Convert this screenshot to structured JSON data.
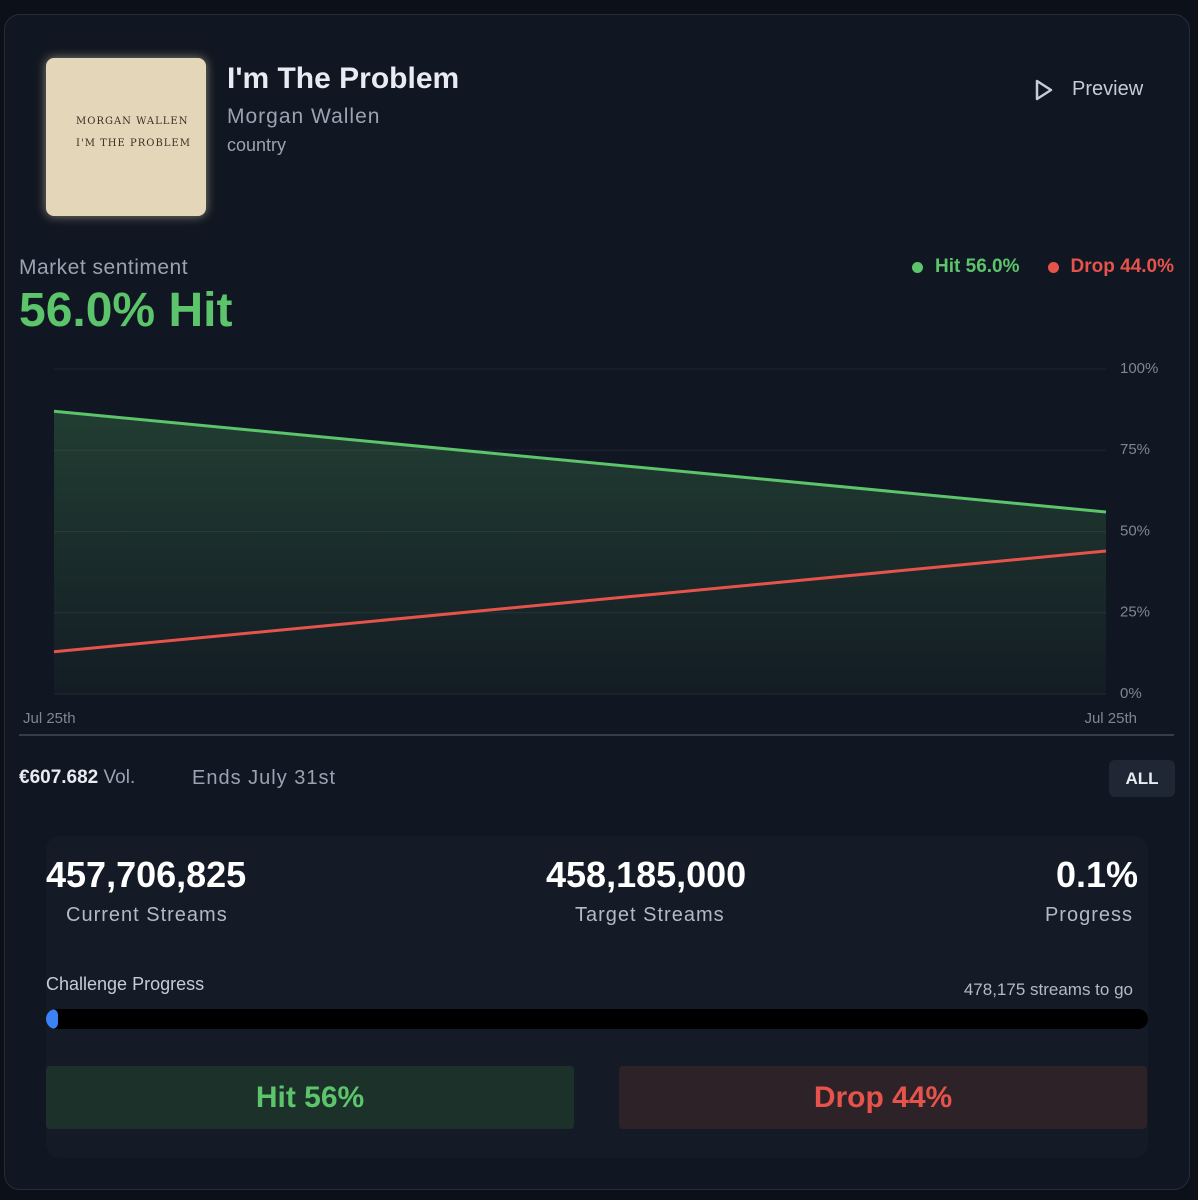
{
  "header": {
    "art_lines": [
      "MORGAN WALLEN",
      "I'M THE PROBLEM"
    ],
    "title": "I'm The Problem",
    "artist": "Morgan Wallen",
    "genre": "country",
    "preview": "Preview"
  },
  "sentiment": {
    "label": "Market sentiment",
    "headline": "56.0% Hit"
  },
  "chart_data": {
    "type": "line",
    "x": [
      "Jul 25th",
      "Jul 25th"
    ],
    "series": [
      {
        "name": "Hit 56.0%",
        "color": "#5cc46a",
        "values": [
          87,
          56
        ],
        "area": true
      },
      {
        "name": "Drop 44.0%",
        "color": "#e5534b",
        "values": [
          13,
          44
        ]
      }
    ],
    "ylim": [
      0,
      100
    ],
    "yticks": [
      {
        "value": 0,
        "label": "0%"
      },
      {
        "value": 25,
        "label": "25%"
      },
      {
        "value": 50,
        "label": "50%"
      },
      {
        "value": 75,
        "label": "75%"
      },
      {
        "value": 100,
        "label": "100%"
      }
    ],
    "grid": true,
    "legend": "top-right"
  },
  "market": {
    "volume": "€607.682",
    "volume_suffix": "Vol.",
    "ends": "Ends July 31st",
    "filter": "ALL"
  },
  "stats": [
    {
      "value": "457,706,825",
      "label": "Current Streams"
    },
    {
      "value": "458,185,000",
      "label": "Target Streams"
    },
    {
      "value": "0.1%",
      "label": "Progress"
    }
  ],
  "progress": {
    "label": "Challenge Progress",
    "remaining": "478,175 streams to go",
    "value": 0.1,
    "max": 100
  },
  "actions": [
    "Hit 56%",
    "Drop 44%"
  ]
}
